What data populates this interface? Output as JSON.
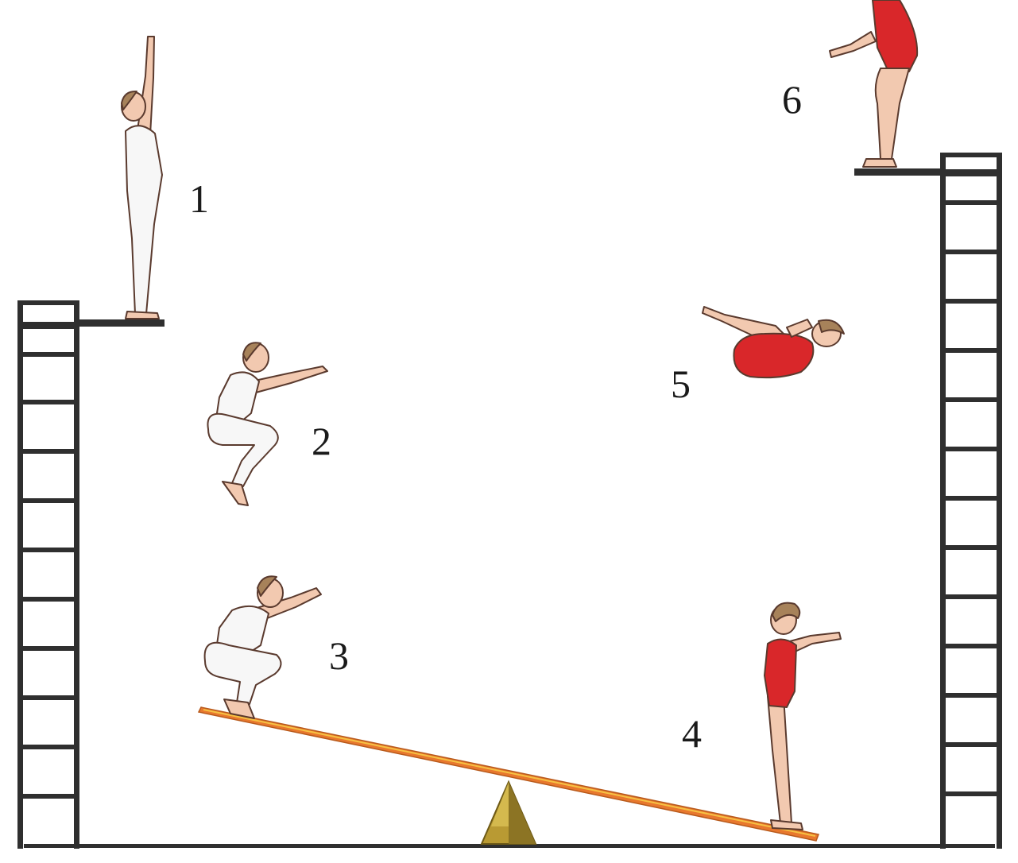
{
  "labels": {
    "figure1": "1",
    "figure2": "2",
    "figure3": "3",
    "figure4": "4",
    "figure5": "5",
    "figure6": "6"
  },
  "colors": {
    "ladder": "#2f2f2f",
    "plank": "#e8782e",
    "plank_highlight": "#f6c243",
    "fulcrum": "#b99a33",
    "leotard_red": "#d9272a",
    "skin": "#f2c9b0",
    "white_suit": "#f7f7f7",
    "outline": "#5a3a2e"
  }
}
